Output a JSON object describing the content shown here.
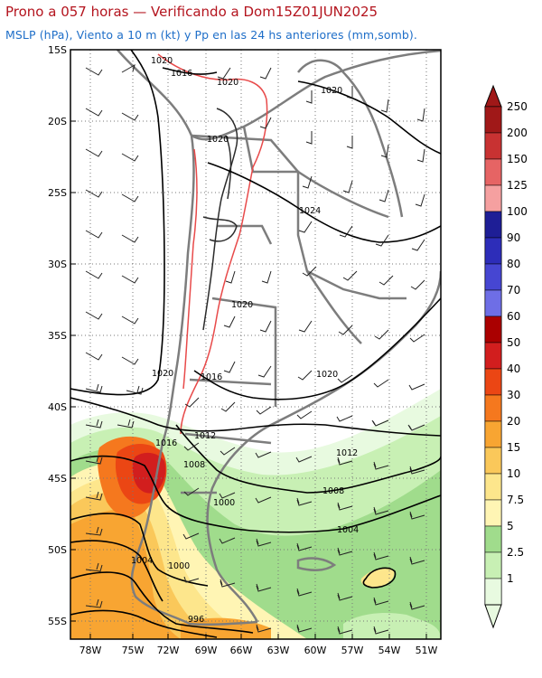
{
  "title": "Prono a 057 horas — Verificando a Dom15Z01JUN2025",
  "subtitle": "MSLP (hPa), Viento a 10 m (kt) y Pp en las 24 hs anteriores (mm,somb).",
  "colors": {
    "title": "#b4141e",
    "subtitle": "#1e6ec8",
    "land_border": "#7d7d7d",
    "isobar": "#000000",
    "orography_contour": "#e84a4a"
  },
  "map": {
    "lat_labels": [
      "15S",
      "20S",
      "25S",
      "30S",
      "35S",
      "40S",
      "45S",
      "50S",
      "55S"
    ],
    "lon_labels": [
      "78W",
      "75W",
      "72W",
      "69W",
      "66W",
      "63W",
      "60W",
      "57W",
      "54W",
      "51W"
    ],
    "isobar_labels": [
      "1020",
      "1016",
      "1020",
      "1020",
      "1020",
      "1024",
      "1020",
      "1020",
      "1016",
      "1020",
      "1016",
      "1012",
      "1008",
      "1012",
      "1008",
      "1000",
      "1004",
      "1004",
      "1000",
      "996"
    ]
  },
  "colorbar": {
    "labels": [
      "250",
      "200",
      "150",
      "125",
      "100",
      "90",
      "80",
      "70",
      "60",
      "50",
      "40",
      "30",
      "20",
      "15",
      "10",
      "7.5",
      "5",
      "2.5",
      "1"
    ],
    "colors": [
      "#a01818",
      "#c83232",
      "#e66464",
      "#f5a0a0",
      "#1e1e96",
      "#2d2db9",
      "#4646d2",
      "#6e6ee6",
      "#aa0000",
      "#d21e1e",
      "#eb4614",
      "#f5781e",
      "#f8a532",
      "#fac85a",
      "#fde68c",
      "#fff5b4",
      "#a0dc8c",
      "#c8f0b4",
      "#e8fae0"
    ]
  }
}
